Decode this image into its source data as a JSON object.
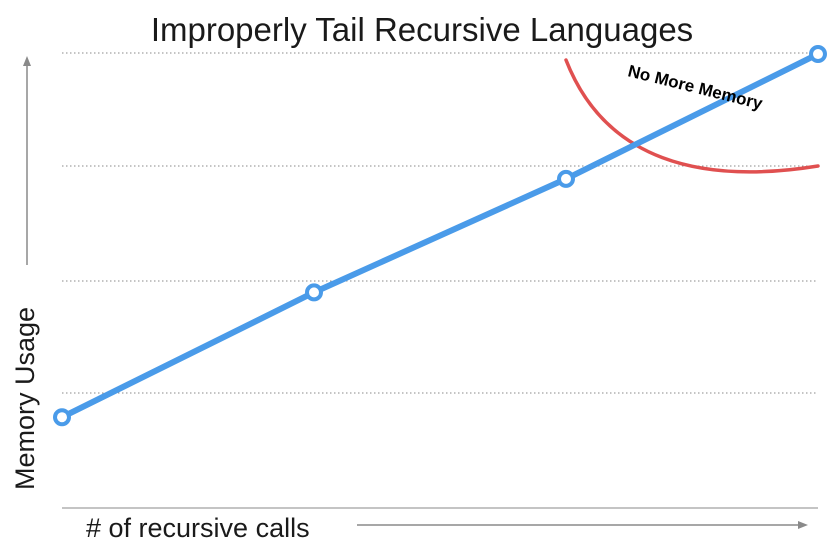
{
  "chart_data": {
    "type": "line",
    "title": "Improperly Tail Recursive Languages",
    "xlabel": "# of recursive calls",
    "ylabel": "Memory Usage",
    "x": [
      1,
      2,
      3,
      4
    ],
    "series": [
      {
        "values": [
          0.8,
          1.9,
          2.9,
          4.0
        ]
      }
    ],
    "xlim": [
      1,
      4
    ],
    "ylim": [
      0,
      4.3
    ],
    "grid": true,
    "annotations": [
      {
        "text": "No More Memory",
        "marker": "red arc"
      }
    ]
  },
  "colors": {
    "series_line": "#4a9be9",
    "marker_fill": "#ffffff",
    "gridline": "#8a8a8a",
    "axis_arrow": "#8a8a8a",
    "limit_arc": "#e05050",
    "text": "#1a1a1a"
  }
}
